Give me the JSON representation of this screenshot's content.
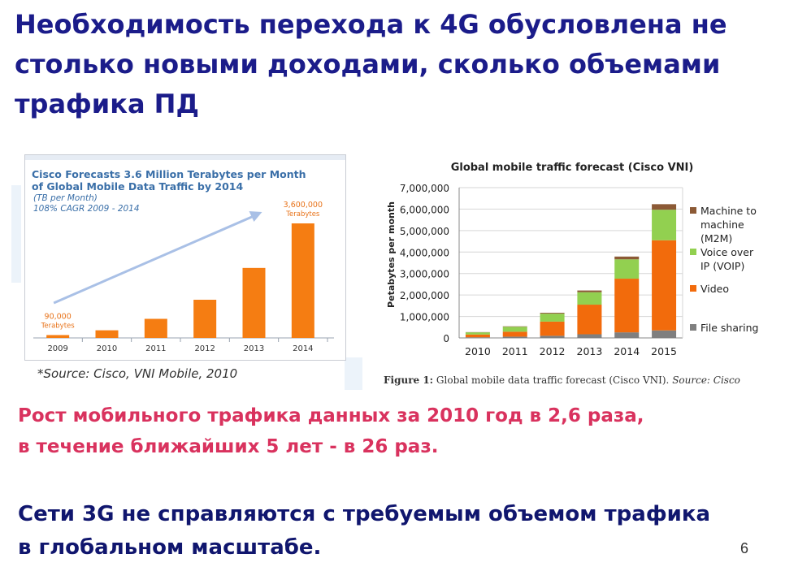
{
  "slide": {
    "title_lines": [
      "Необходимость перехода к 4G обусловлена не",
      "столько новыми доходами, сколько объемами",
      "трафика ПД"
    ],
    "finding_lines": [
      "Рост мобильного трафика данных за 2010 год в 2,6 раза,",
      "в течение ближайших 5 лет - в 26 раз."
    ],
    "conclusion_lines": [
      "Сети 3G не справляются с требуемым объемом трафика",
      "в глобальном масштабе."
    ],
    "page_number": "6",
    "colors": {
      "title": "#1b1c8a",
      "finding": "#d9325e",
      "conclusion": "#10166e"
    }
  },
  "chart_data": [
    {
      "type": "bar",
      "title": "Cisco Forecasts 3.6 Million Terabytes per Month of Global Mobile Data Traffic by 2014",
      "title_lines": [
        "Cisco Forecasts 3.6 Million Terabytes per Month",
        "of Global Mobile Data Traffic by 2014"
      ],
      "subtitle_lines": [
        "(TB per Month)",
        "108% CAGR 2009 - 2014"
      ],
      "categories": [
        "2009",
        "2010",
        "2011",
        "2012",
        "2013",
        "2014"
      ],
      "values": [
        90000,
        240000,
        600000,
        1200000,
        2200000,
        3600000
      ],
      "ylim": [
        0,
        3600000
      ],
      "annotations": [
        {
          "category": "2009",
          "lines": [
            "90,000",
            "Terabytes"
          ]
        },
        {
          "category": "2014",
          "lines": [
            "3,600,000",
            "Terabytes"
          ]
        }
      ],
      "source": "*Source: Cisco, VNI Mobile, 2010",
      "colors": {
        "bar": "#f57d12",
        "title": "#3a6fa8",
        "annotation": "#e8731a",
        "arrow": "#a9c0e6"
      }
    },
    {
      "type": "bar",
      "stacked": true,
      "title": "Global mobile traffic forecast (Cisco VNI)",
      "ylabel": "Petabytes per month",
      "xlabel": "",
      "categories": [
        "2010",
        "2011",
        "2012",
        "2013",
        "2014",
        "2015"
      ],
      "ylim": [
        0,
        7000000
      ],
      "yticks": [
        "0",
        "1,000,000",
        "2,000,000",
        "3,000,000",
        "4,000,000",
        "5,000,000",
        "6,000,000",
        "7,000,000"
      ],
      "grid": true,
      "legend_position": "right",
      "series": [
        {
          "name": "File sharing",
          "color": "#7f7f7f",
          "values": [
            30000,
            60000,
            100000,
            170000,
            260000,
            350000
          ]
        },
        {
          "name": "Video",
          "color": "#f26b0c",
          "values": [
            130000,
            230000,
            660000,
            1380000,
            2500000,
            4200000
          ]
        },
        {
          "name": "Voice over IP (VOIP)",
          "color": "#92d050",
          "values": [
            100000,
            230000,
            370000,
            580000,
            900000,
            1420000
          ]
        },
        {
          "name": "Machine to machine (M2M)",
          "color": "#8c5a36",
          "values": [
            10000,
            20000,
            40000,
            80000,
            130000,
            260000
          ]
        }
      ],
      "legend": [
        {
          "series": "Machine to machine (M2M)",
          "lines": [
            "Machine to",
            "machine",
            "(M2M)"
          ]
        },
        {
          "series": "Voice over IP (VOIP)",
          "lines": [
            "Voice over",
            "IP (VOIP)"
          ]
        },
        {
          "series": "Video",
          "lines": [
            "Video"
          ]
        },
        {
          "series": "File sharing",
          "lines": [
            "File sharing"
          ]
        }
      ],
      "caption": {
        "prefix": "Figure 1:",
        "text": " Global mobile data traffic forecast (Cisco VNI). ",
        "source": "Source:",
        "tail": " Cisco"
      }
    }
  ]
}
